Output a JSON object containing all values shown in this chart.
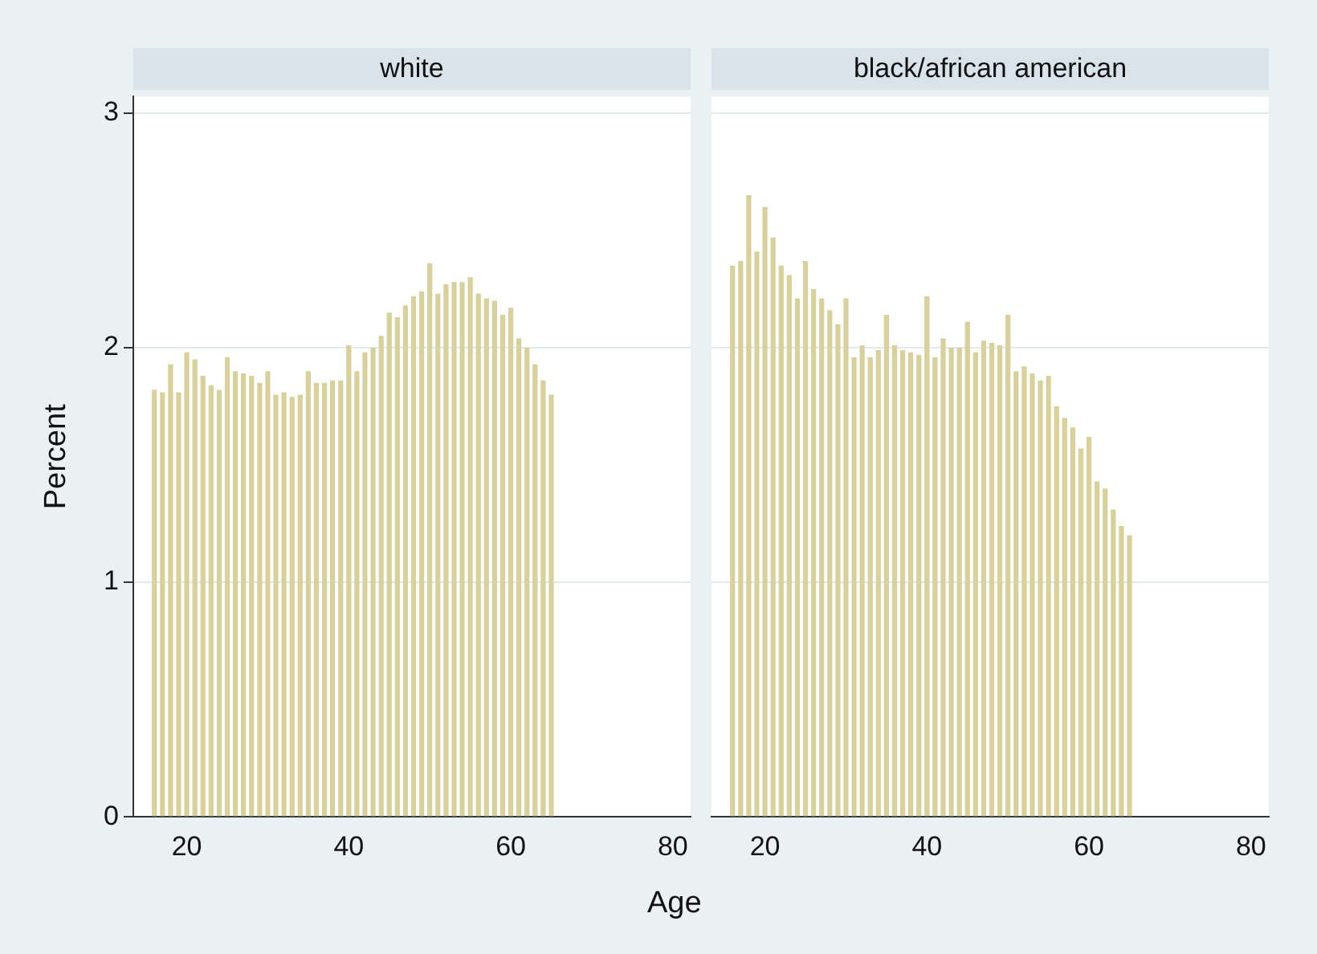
{
  "chart_data": [
    {
      "type": "histogram",
      "title": "white",
      "ylabel": "Percent",
      "xlabel": "Age",
      "color": "#d8d19b",
      "bins": [
        15.5,
        16.5,
        17.5,
        18.5,
        19.5,
        20.5,
        21.5,
        22.5,
        23.5,
        24.5,
        25.5,
        26.5,
        27.5,
        28.5,
        29.5,
        30.5,
        31.5,
        32.5,
        33.5,
        34.5,
        35.5,
        36.5,
        37.5,
        38.5,
        39.5,
        40.5,
        41.5,
        42.5,
        43.5,
        44.5,
        45.5,
        46.5,
        47.5,
        48.5,
        49.5,
        50.5,
        51.5,
        52.5,
        53.5,
        54.5,
        55.5,
        56.5,
        57.5,
        58.5,
        59.5,
        60.5,
        61.5,
        62.5,
        63.5,
        64.5,
        65.5
      ],
      "values": [
        1.82,
        1.81,
        1.93,
        1.81,
        1.98,
        1.95,
        1.88,
        1.84,
        1.82,
        1.96,
        1.9,
        1.89,
        1.88,
        1.85,
        1.9,
        1.8,
        1.81,
        1.79,
        1.8,
        1.9,
        1.85,
        1.85,
        1.86,
        1.86,
        2.01,
        1.9,
        1.98,
        2.0,
        2.05,
        2.15,
        2.13,
        2.18,
        2.22,
        2.24,
        2.36,
        2.23,
        2.27,
        2.28,
        2.28,
        2.3,
        2.23,
        2.21,
        2.2,
        2.14,
        2.17,
        2.04,
        2.0,
        1.93,
        1.86,
        1.8
      ],
      "xlim": [
        13.4,
        82.2
      ],
      "xticks": [
        20,
        40,
        60,
        80
      ],
      "ylim": [
        0,
        3.07
      ],
      "yticks": [
        0,
        1,
        2,
        3
      ],
      "grid": "y"
    },
    {
      "type": "histogram",
      "title": "black/african american",
      "color": "#d8d19b",
      "bins": [
        15.5,
        16.5,
        17.5,
        18.5,
        19.5,
        20.5,
        21.5,
        22.5,
        23.5,
        24.5,
        25.5,
        26.5,
        27.5,
        28.5,
        29.5,
        30.5,
        31.5,
        32.5,
        33.5,
        34.5,
        35.5,
        36.5,
        37.5,
        38.5,
        39.5,
        40.5,
        41.5,
        42.5,
        43.5,
        44.5,
        45.5,
        46.5,
        47.5,
        48.5,
        49.5,
        50.5,
        51.5,
        52.5,
        53.5,
        54.5,
        55.5,
        56.5,
        57.5,
        58.5,
        59.5,
        60.5,
        61.5,
        62.5,
        63.5,
        64.5,
        65.5
      ],
      "values": [
        2.35,
        2.37,
        2.65,
        2.41,
        2.6,
        2.47,
        2.35,
        2.31,
        2.21,
        2.37,
        2.25,
        2.21,
        2.16,
        2.1,
        2.21,
        1.96,
        2.01,
        1.96,
        1.99,
        2.14,
        2.01,
        1.99,
        1.98,
        1.97,
        2.22,
        1.96,
        2.04,
        2.0,
        2.0,
        2.11,
        1.98,
        2.03,
        2.02,
        2.01,
        2.14,
        1.9,
        1.92,
        1.89,
        1.86,
        1.88,
        1.75,
        1.7,
        1.66,
        1.57,
        1.62,
        1.43,
        1.4,
        1.31,
        1.24,
        1.2
      ],
      "xlim": [
        13.4,
        82.2
      ],
      "xticks": [
        20,
        40,
        60,
        80
      ],
      "ylim": [
        0,
        3.07
      ],
      "yticks": [
        0,
        1,
        2,
        3
      ],
      "grid": "y",
      "tick_labels": "x"
    }
  ]
}
